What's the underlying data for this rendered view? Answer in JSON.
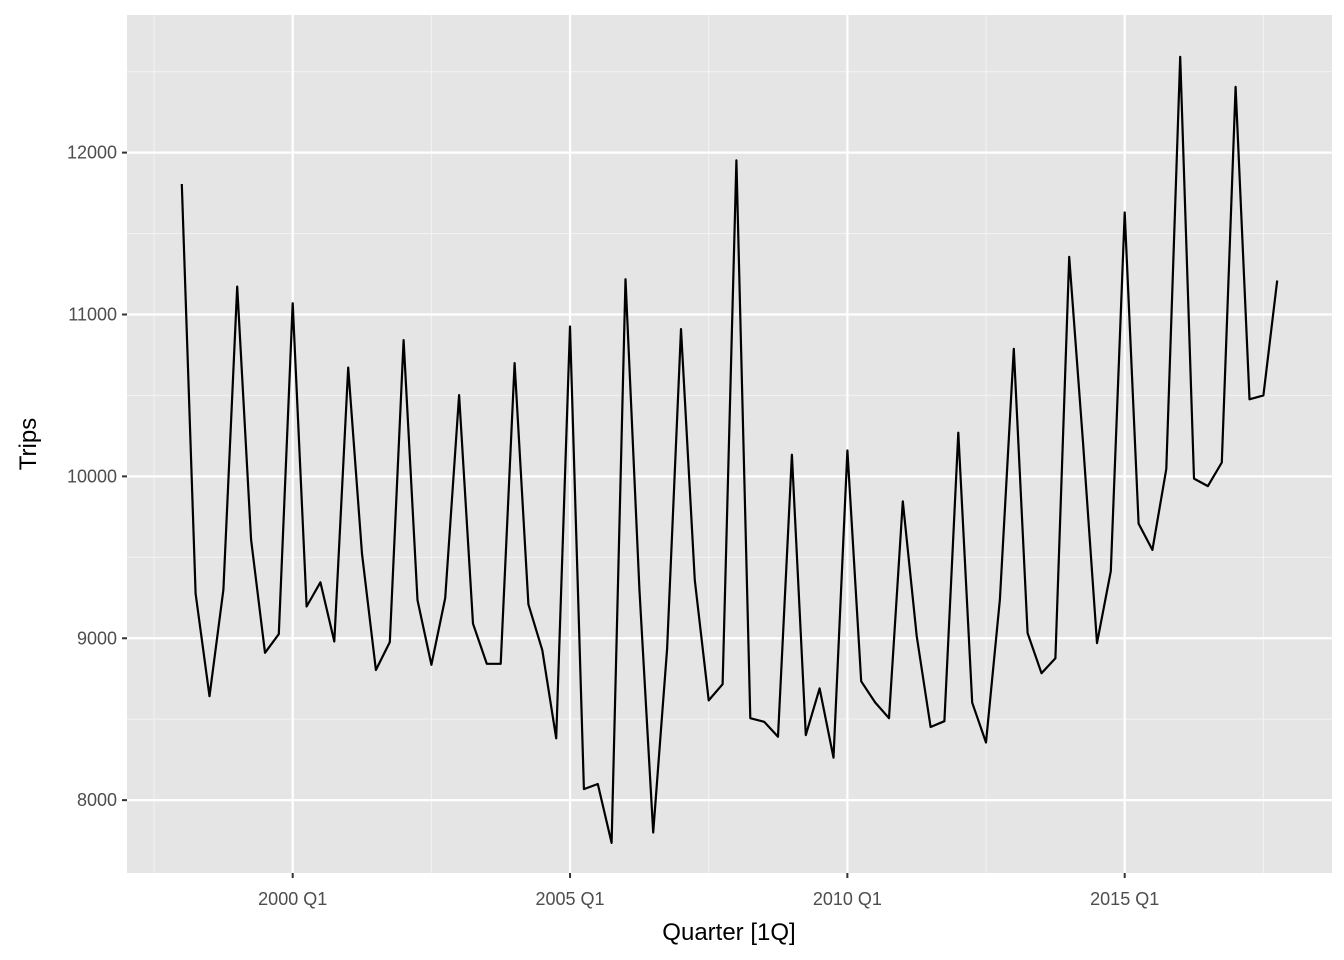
{
  "chart_data": {
    "type": "line",
    "title": "",
    "xlabel": "Quarter [1Q]",
    "ylabel": "Trips",
    "x_ticks": [
      "2000 Q1",
      "2005 Q1",
      "2010 Q1",
      "2015 Q1"
    ],
    "y_ticks": [
      8000,
      9000,
      10000,
      11000,
      12000
    ],
    "ylim": [
      7550,
      12850
    ],
    "grid": true,
    "background": "#e5e5e5",
    "grid_color": "#ffffff",
    "line_color": "#000000",
    "x": [
      "1998 Q1",
      "1998 Q2",
      "1998 Q3",
      "1998 Q4",
      "1999 Q1",
      "1999 Q2",
      "1999 Q3",
      "1999 Q4",
      "2000 Q1",
      "2000 Q2",
      "2000 Q3",
      "2000 Q4",
      "2001 Q1",
      "2001 Q2",
      "2001 Q3",
      "2001 Q4",
      "2002 Q1",
      "2002 Q2",
      "2002 Q3",
      "2002 Q4",
      "2003 Q1",
      "2003 Q2",
      "2003 Q3",
      "2003 Q4",
      "2004 Q1",
      "2004 Q2",
      "2004 Q3",
      "2004 Q4",
      "2005 Q1",
      "2005 Q2",
      "2005 Q3",
      "2005 Q4",
      "2006 Q1",
      "2006 Q2",
      "2006 Q3",
      "2006 Q4",
      "2007 Q1",
      "2007 Q2",
      "2007 Q3",
      "2007 Q4",
      "2008 Q1",
      "2008 Q2",
      "2008 Q3",
      "2008 Q4",
      "2009 Q1",
      "2009 Q2",
      "2009 Q3",
      "2009 Q4",
      "2010 Q1",
      "2010 Q2",
      "2010 Q3",
      "2010 Q4",
      "2011 Q1",
      "2011 Q2",
      "2011 Q3",
      "2011 Q4",
      "2012 Q1",
      "2012 Q2",
      "2012 Q3",
      "2012 Q4",
      "2013 Q1",
      "2013 Q2",
      "2013 Q3",
      "2013 Q4",
      "2014 Q1",
      "2014 Q2",
      "2014 Q3",
      "2014 Q4",
      "2015 Q1",
      "2015 Q2",
      "2015 Q3",
      "2015 Q4",
      "2016 Q1",
      "2016 Q2",
      "2016 Q3",
      "2016 Q4",
      "2017 Q1",
      "2017 Q2",
      "2017 Q3",
      "2017 Q4"
    ],
    "series": [
      {
        "values": [
          11806,
          9276,
          8642,
          9300,
          11172,
          9608,
          8910,
          9026,
          11070,
          9196,
          9346,
          8980,
          10672,
          9522,
          8804,
          8976,
          10842,
          9236,
          8836,
          9248,
          10502,
          9090,
          8842,
          8842,
          10700,
          9210,
          8926,
          8382,
          10926,
          8068,
          8100,
          7736,
          11218,
          9304,
          7800,
          8934,
          10910,
          9358,
          8616,
          8716,
          11952,
          8506,
          8484,
          8392,
          10134,
          8402,
          8690,
          8262,
          10160,
          8734,
          8604,
          8506,
          9846,
          9014,
          8452,
          8488,
          10270,
          8602,
          8356,
          9240,
          10788,
          9032,
          8784,
          8876,
          11356,
          10202,
          8970,
          9414,
          11630,
          9708,
          9546,
          10046,
          12592,
          9986,
          9940,
          10086,
          12406,
          10476,
          10500,
          11210
        ]
      }
    ]
  }
}
